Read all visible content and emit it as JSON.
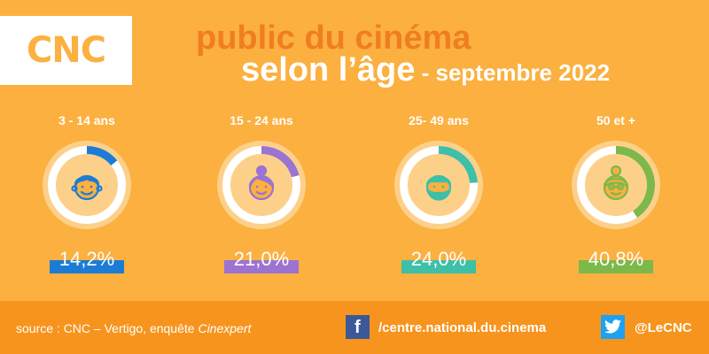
{
  "logo": {
    "text": "CNC"
  },
  "title": {
    "line1": "public du cinéma",
    "line2_main": "selon l’âge",
    "line2_sub": " - septembre 2022"
  },
  "colors": {
    "background": "#FBB040",
    "footer": "#F7941D",
    "title_orange": "#F07E1F",
    "ring_base": "#FDD08A",
    "ring_inner": "#FFFFFF",
    "face": "#FBB040"
  },
  "chart_data": {
    "type": "pie",
    "categories": [
      "3 - 14 ans",
      "15 - 24 ans",
      "25- 49 ans",
      "50 et +"
    ],
    "values": [
      14.2,
      21.0,
      24.0,
      40.8
    ],
    "value_labels": [
      "14,2%",
      "21,0%",
      "24,0%",
      "40,8%"
    ],
    "series_colors": [
      "#1C7CD5",
      "#9B73D0",
      "#3DBFA8",
      "#7CB84A"
    ],
    "icons": [
      "child-face-icon",
      "young-woman-face-icon",
      "bearded-man-face-icon",
      "elderly-woman-face-icon"
    ]
  },
  "footer": {
    "source_prefix": "source : CNC – Vertigo, enquête ",
    "source_italic": "Cinexpert",
    "facebook": "/centre.national.du.cinema",
    "twitter": "@LeCNC",
    "facebook_icon": "facebook-icon",
    "twitter_icon": "twitter-icon"
  }
}
